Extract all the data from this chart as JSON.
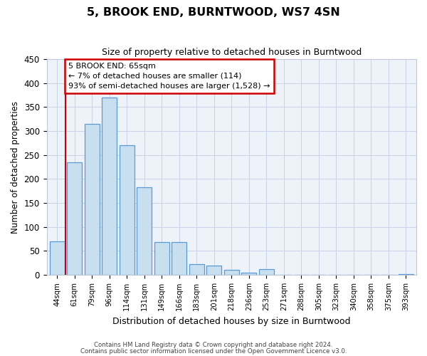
{
  "title": "5, BROOK END, BURNTWOOD, WS7 4SN",
  "subtitle": "Size of property relative to detached houses in Burntwood",
  "xlabel": "Distribution of detached houses by size in Burntwood",
  "ylabel": "Number of detached properties",
  "bin_labels": [
    "44sqm",
    "61sqm",
    "79sqm",
    "96sqm",
    "114sqm",
    "131sqm",
    "149sqm",
    "166sqm",
    "183sqm",
    "201sqm",
    "218sqm",
    "236sqm",
    "253sqm",
    "271sqm",
    "288sqm",
    "305sqm",
    "323sqm",
    "340sqm",
    "358sqm",
    "375sqm",
    "393sqm"
  ],
  "bar_heights": [
    70,
    235,
    315,
    370,
    270,
    183,
    68,
    68,
    22,
    20,
    10,
    5,
    12,
    0,
    0,
    0,
    0,
    0,
    0,
    0,
    2
  ],
  "bar_color": "#c8dff0",
  "bar_edge_color": "#5b9bd5",
  "marker_line_color": "#cc0000",
  "ylim": [
    0,
    450
  ],
  "yticks": [
    0,
    50,
    100,
    150,
    200,
    250,
    300,
    350,
    400,
    450
  ],
  "annotation_title": "5 BROOK END: 65sqm",
  "annotation_line1": "← 7% of detached houses are smaller (114)",
  "annotation_line2": "93% of semi-detached houses are larger (1,528) →",
  "annotation_box_color": "#ffffff",
  "annotation_box_edge": "#cc0000",
  "footer_line1": "Contains HM Land Registry data © Crown copyright and database right 2024.",
  "footer_line2": "Contains public sector information licensed under the Open Government Licence v3.0.",
  "bg_color": "#eef3fa"
}
